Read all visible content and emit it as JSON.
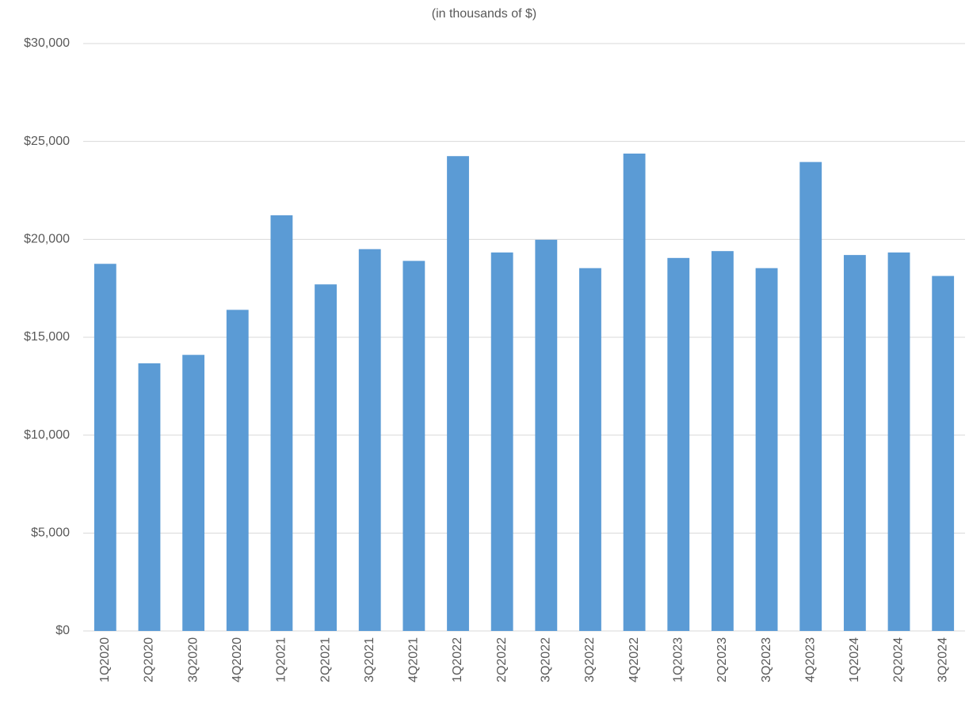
{
  "chart_data": {
    "type": "bar",
    "subtitle": "(in thousands of $)",
    "categories": [
      "1Q2020",
      "2Q2020",
      "3Q2020",
      "4Q2020",
      "1Q2021",
      "2Q2021",
      "3Q2021",
      "4Q2021",
      "1Q2022",
      "2Q2022",
      "3Q2022",
      "3Q2022",
      "4Q2022",
      "1Q2023",
      "2Q2023",
      "3Q2023",
      "4Q2023",
      "1Q2024",
      "2Q2024",
      "3Q2024"
    ],
    "values": [
      18750,
      13670,
      14100,
      16400,
      21230,
      17700,
      19500,
      18900,
      24250,
      19330,
      19980,
      18530,
      24380,
      19050,
      19400,
      18530,
      23950,
      19200,
      19330,
      18130
    ],
    "color": "#5b9bd5",
    "ylim": [
      0,
      30000
    ],
    "yticks": [
      {
        "value": 0,
        "label": "$0"
      },
      {
        "value": 5000,
        "label": "$5,000"
      },
      {
        "value": 10000,
        "label": "$10,000"
      },
      {
        "value": 15000,
        "label": "$15,000"
      },
      {
        "value": 20000,
        "label": "$20,000"
      },
      {
        "value": 25000,
        "label": "$25,000"
      },
      {
        "value": 30000,
        "label": "$30,000"
      }
    ],
    "grid": true
  }
}
